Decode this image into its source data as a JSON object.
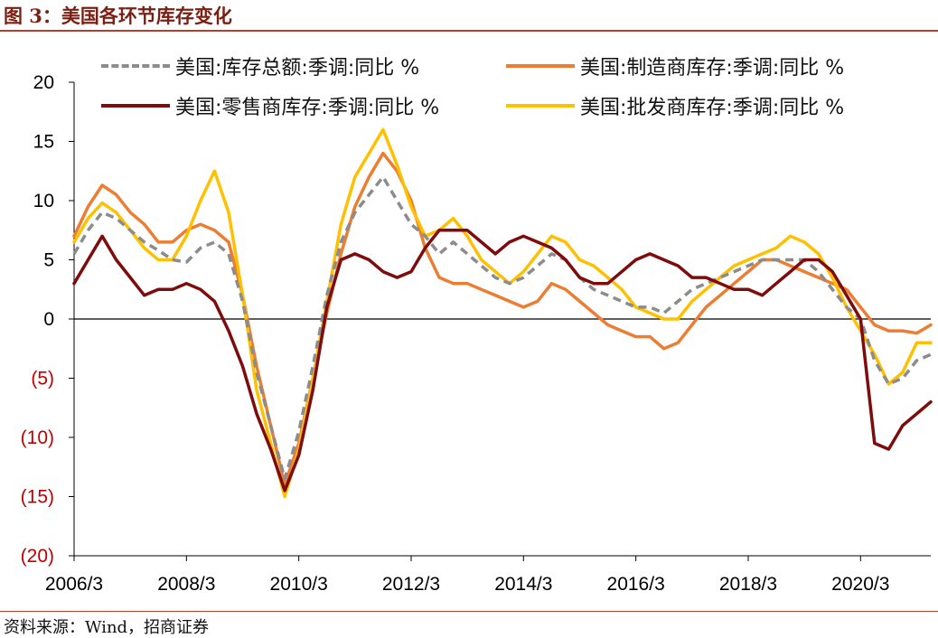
{
  "figure": {
    "title": "图 3：美国各环节库存变化",
    "source": "资料来源：Wind，招商证券"
  },
  "chart_data": {
    "type": "line",
    "title": "",
    "xlabel": "",
    "ylabel": "",
    "ylim": [
      -20,
      20
    ],
    "yticks": [
      20,
      15,
      10,
      5,
      0,
      -5,
      -10,
      -15,
      -20
    ],
    "ytick_labels": [
      "20",
      "15",
      "10",
      "5",
      "0",
      "(5)",
      "(10)",
      "(15)",
      "(20)"
    ],
    "ytick_colors": [
      "#000000",
      "#000000",
      "#000000",
      "#000000",
      "#000000",
      "#c00000",
      "#c00000",
      "#c00000",
      "#c00000"
    ],
    "xlim": [
      "2006-03",
      "2021-06"
    ],
    "xtick_labels": [
      "2006/3",
      "2008/3",
      "2010/3",
      "2012/3",
      "2014/3",
      "2016/3",
      "2018/3",
      "2020/3"
    ],
    "xticks": [
      "2006-03",
      "2008-03",
      "2010-03",
      "2012-03",
      "2014-03",
      "2016-03",
      "2018-03",
      "2020-03"
    ],
    "zero_line": true,
    "grid": false,
    "legend_position": "top",
    "series": [
      {
        "name": "美国:库存总额:季调:同比 %",
        "color": "#8c8c8c",
        "style": "dashed",
        "points": [
          [
            "2006-03",
            5.5
          ],
          [
            "2006-06",
            7.5
          ],
          [
            "2006-09",
            9.0
          ],
          [
            "2006-12",
            8.5
          ],
          [
            "2007-03",
            7.5
          ],
          [
            "2007-06",
            6.5
          ],
          [
            "2007-09",
            5.8
          ],
          [
            "2007-12",
            5.0
          ],
          [
            "2008-03",
            4.8
          ],
          [
            "2008-06",
            6.0
          ],
          [
            "2008-09",
            6.5
          ],
          [
            "2008-12",
            5.5
          ],
          [
            "2009-03",
            1.5
          ],
          [
            "2009-06",
            -4.5
          ],
          [
            "2009-09",
            -9.0
          ],
          [
            "2009-12",
            -13.5
          ],
          [
            "2010-03",
            -9.5
          ],
          [
            "2010-06",
            -4.0
          ],
          [
            "2010-09",
            2.0
          ],
          [
            "2010-12",
            6.5
          ],
          [
            "2011-03",
            9.0
          ],
          [
            "2011-06",
            10.5
          ],
          [
            "2011-09",
            12.0
          ],
          [
            "2011-12",
            10.0
          ],
          [
            "2012-03",
            8.0
          ],
          [
            "2012-06",
            7.0
          ],
          [
            "2012-09",
            5.5
          ],
          [
            "2012-12",
            6.5
          ],
          [
            "2013-03",
            5.5
          ],
          [
            "2013-06",
            4.5
          ],
          [
            "2013-09",
            3.5
          ],
          [
            "2013-12",
            3.0
          ],
          [
            "2014-03",
            3.5
          ],
          [
            "2014-06",
            4.5
          ],
          [
            "2014-09",
            5.5
          ],
          [
            "2014-12",
            5.0
          ],
          [
            "2015-03",
            3.5
          ],
          [
            "2015-06",
            2.5
          ],
          [
            "2015-09",
            2.0
          ],
          [
            "2015-12",
            1.5
          ],
          [
            "2016-03",
            1.0
          ],
          [
            "2016-06",
            1.0
          ],
          [
            "2016-09",
            0.5
          ],
          [
            "2016-12",
            1.5
          ],
          [
            "2017-03",
            2.5
          ],
          [
            "2017-06",
            3.0
          ],
          [
            "2017-09",
            3.5
          ],
          [
            "2017-12",
            4.0
          ],
          [
            "2018-03",
            4.5
          ],
          [
            "2018-06",
            5.0
          ],
          [
            "2018-09",
            5.0
          ],
          [
            "2018-12",
            5.0
          ],
          [
            "2019-03",
            5.0
          ],
          [
            "2019-06",
            4.0
          ],
          [
            "2019-09",
            2.5
          ],
          [
            "2019-12",
            1.0
          ],
          [
            "2020-03",
            0.0
          ],
          [
            "2020-06",
            -3.5
          ],
          [
            "2020-09",
            -5.5
          ],
          [
            "2020-12",
            -5.0
          ],
          [
            "2021-03",
            -3.5
          ],
          [
            "2021-06",
            -3.0
          ]
        ]
      },
      {
        "name": "美国:制造商库存:季调:同比 %",
        "color": "#ed7d31",
        "style": "solid",
        "points": [
          [
            "2006-03",
            7.0
          ],
          [
            "2006-06",
            9.5
          ],
          [
            "2006-09",
            11.3
          ],
          [
            "2006-12",
            10.5
          ],
          [
            "2007-03",
            9.0
          ],
          [
            "2007-06",
            8.0
          ],
          [
            "2007-09",
            6.5
          ],
          [
            "2007-12",
            6.5
          ],
          [
            "2008-03",
            7.5
          ],
          [
            "2008-06",
            8.0
          ],
          [
            "2008-09",
            7.5
          ],
          [
            "2008-12",
            6.5
          ],
          [
            "2009-03",
            2.0
          ],
          [
            "2009-06",
            -4.0
          ],
          [
            "2009-09",
            -9.0
          ],
          [
            "2009-12",
            -14.0
          ],
          [
            "2010-03",
            -10.5
          ],
          [
            "2010-06",
            -5.0
          ],
          [
            "2010-09",
            0.5
          ],
          [
            "2010-12",
            5.5
          ],
          [
            "2011-03",
            9.5
          ],
          [
            "2011-06",
            12.0
          ],
          [
            "2011-09",
            14.0
          ],
          [
            "2011-12",
            12.5
          ],
          [
            "2012-03",
            10.0
          ],
          [
            "2012-06",
            6.0
          ],
          [
            "2012-09",
            3.5
          ],
          [
            "2012-12",
            3.0
          ],
          [
            "2013-03",
            3.0
          ],
          [
            "2013-06",
            2.5
          ],
          [
            "2013-09",
            2.0
          ],
          [
            "2013-12",
            1.5
          ],
          [
            "2014-03",
            1.0
          ],
          [
            "2014-06",
            1.5
          ],
          [
            "2014-09",
            3.0
          ],
          [
            "2014-12",
            2.5
          ],
          [
            "2015-03",
            1.5
          ],
          [
            "2015-06",
            0.5
          ],
          [
            "2015-09",
            -0.5
          ],
          [
            "2015-12",
            -1.0
          ],
          [
            "2016-03",
            -1.5
          ],
          [
            "2016-06",
            -1.5
          ],
          [
            "2016-09",
            -2.5
          ],
          [
            "2016-12",
            -2.0
          ],
          [
            "2017-03",
            -0.5
          ],
          [
            "2017-06",
            1.0
          ],
          [
            "2017-09",
            2.0
          ],
          [
            "2017-12",
            3.0
          ],
          [
            "2018-03",
            4.0
          ],
          [
            "2018-06",
            5.0
          ],
          [
            "2018-09",
            5.0
          ],
          [
            "2018-12",
            4.5
          ],
          [
            "2019-03",
            4.0
          ],
          [
            "2019-06",
            3.5
          ],
          [
            "2019-09",
            3.0
          ],
          [
            "2019-12",
            2.5
          ],
          [
            "2020-03",
            1.0
          ],
          [
            "2020-06",
            -0.5
          ],
          [
            "2020-09",
            -1.0
          ],
          [
            "2020-12",
            -1.0
          ],
          [
            "2021-03",
            -1.2
          ],
          [
            "2021-06",
            -0.5
          ]
        ]
      },
      {
        "name": "美国:零售商库存:季调:同比 %",
        "color": "#7f0c0c",
        "style": "solid",
        "points": [
          [
            "2006-03",
            3.0
          ],
          [
            "2006-06",
            5.0
          ],
          [
            "2006-09",
            7.0
          ],
          [
            "2006-12",
            5.0
          ],
          [
            "2007-03",
            3.5
          ],
          [
            "2007-06",
            2.0
          ],
          [
            "2007-09",
            2.5
          ],
          [
            "2007-12",
            2.5
          ],
          [
            "2008-03",
            3.0
          ],
          [
            "2008-06",
            2.5
          ],
          [
            "2008-09",
            1.5
          ],
          [
            "2008-12",
            -1.0
          ],
          [
            "2009-03",
            -4.0
          ],
          [
            "2009-06",
            -8.0
          ],
          [
            "2009-09",
            -11.0
          ],
          [
            "2009-12",
            -14.5
          ],
          [
            "2010-03",
            -11.5
          ],
          [
            "2010-06",
            -6.0
          ],
          [
            "2010-09",
            1.0
          ],
          [
            "2010-12",
            5.0
          ],
          [
            "2011-03",
            5.5
          ],
          [
            "2011-06",
            5.0
          ],
          [
            "2011-09",
            4.0
          ],
          [
            "2011-12",
            3.5
          ],
          [
            "2012-03",
            4.0
          ],
          [
            "2012-06",
            6.0
          ],
          [
            "2012-09",
            7.5
          ],
          [
            "2012-12",
            7.5
          ],
          [
            "2013-03",
            7.5
          ],
          [
            "2013-06",
            6.5
          ],
          [
            "2013-09",
            5.5
          ],
          [
            "2013-12",
            6.5
          ],
          [
            "2014-03",
            7.0
          ],
          [
            "2014-06",
            6.5
          ],
          [
            "2014-09",
            6.0
          ],
          [
            "2014-12",
            5.0
          ],
          [
            "2015-03",
            3.5
          ],
          [
            "2015-06",
            3.0
          ],
          [
            "2015-09",
            3.0
          ],
          [
            "2015-12",
            4.0
          ],
          [
            "2016-03",
            5.0
          ],
          [
            "2016-06",
            5.5
          ],
          [
            "2016-09",
            5.0
          ],
          [
            "2016-12",
            4.5
          ],
          [
            "2017-03",
            3.5
          ],
          [
            "2017-06",
            3.5
          ],
          [
            "2017-09",
            3.0
          ],
          [
            "2017-12",
            2.5
          ],
          [
            "2018-03",
            2.5
          ],
          [
            "2018-06",
            2.0
          ],
          [
            "2018-09",
            3.0
          ],
          [
            "2018-12",
            4.0
          ],
          [
            "2019-03",
            5.0
          ],
          [
            "2019-06",
            5.0
          ],
          [
            "2019-09",
            4.0
          ],
          [
            "2019-12",
            2.0
          ],
          [
            "2020-03",
            0.0
          ],
          [
            "2020-06",
            -10.5
          ],
          [
            "2020-09",
            -11.0
          ],
          [
            "2020-12",
            -9.0
          ],
          [
            "2021-03",
            -8.0
          ],
          [
            "2021-06",
            -7.0
          ]
        ]
      },
      {
        "name": "美国:批发商库存:季调:同比 %",
        "color": "#ffc000",
        "style": "solid",
        "points": [
          [
            "2006-03",
            6.5
          ],
          [
            "2006-06",
            8.5
          ],
          [
            "2006-09",
            9.8
          ],
          [
            "2006-12",
            9.0
          ],
          [
            "2007-03",
            7.5
          ],
          [
            "2007-06",
            6.0
          ],
          [
            "2007-09",
            5.0
          ],
          [
            "2007-12",
            5.0
          ],
          [
            "2008-03",
            7.0
          ],
          [
            "2008-06",
            10.0
          ],
          [
            "2008-09",
            12.5
          ],
          [
            "2008-12",
            9.0
          ],
          [
            "2009-03",
            2.0
          ],
          [
            "2009-06",
            -6.0
          ],
          [
            "2009-09",
            -10.5
          ],
          [
            "2009-12",
            -15.0
          ],
          [
            "2010-03",
            -11.0
          ],
          [
            "2010-06",
            -5.0
          ],
          [
            "2010-09",
            1.5
          ],
          [
            "2010-12",
            8.0
          ],
          [
            "2011-03",
            12.0
          ],
          [
            "2011-06",
            14.0
          ],
          [
            "2011-09",
            16.0
          ],
          [
            "2011-12",
            13.0
          ],
          [
            "2012-03",
            9.5
          ],
          [
            "2012-06",
            7.0
          ],
          [
            "2012-09",
            7.5
          ],
          [
            "2012-12",
            8.5
          ],
          [
            "2013-03",
            7.0
          ],
          [
            "2013-06",
            5.0
          ],
          [
            "2013-09",
            4.0
          ],
          [
            "2013-12",
            3.0
          ],
          [
            "2014-03",
            4.0
          ],
          [
            "2014-06",
            5.5
          ],
          [
            "2014-09",
            7.0
          ],
          [
            "2014-12",
            6.5
          ],
          [
            "2015-03",
            5.0
          ],
          [
            "2015-06",
            4.5
          ],
          [
            "2015-09",
            3.5
          ],
          [
            "2015-12",
            2.5
          ],
          [
            "2016-03",
            1.0
          ],
          [
            "2016-06",
            0.5
          ],
          [
            "2016-09",
            0.0
          ],
          [
            "2016-12",
            0.0
          ],
          [
            "2017-03",
            1.5
          ],
          [
            "2017-06",
            2.5
          ],
          [
            "2017-09",
            3.5
          ],
          [
            "2017-12",
            4.5
          ],
          [
            "2018-03",
            5.0
          ],
          [
            "2018-06",
            5.5
          ],
          [
            "2018-09",
            6.0
          ],
          [
            "2018-12",
            7.0
          ],
          [
            "2019-03",
            6.5
          ],
          [
            "2019-06",
            5.5
          ],
          [
            "2019-09",
            3.5
          ],
          [
            "2019-12",
            1.0
          ],
          [
            "2020-03",
            -1.0
          ],
          [
            "2020-06",
            -3.0
          ],
          [
            "2020-09",
            -5.5
          ],
          [
            "2020-12",
            -4.5
          ],
          [
            "2021-03",
            -2.0
          ],
          [
            "2021-06",
            -2.0
          ]
        ]
      }
    ]
  }
}
